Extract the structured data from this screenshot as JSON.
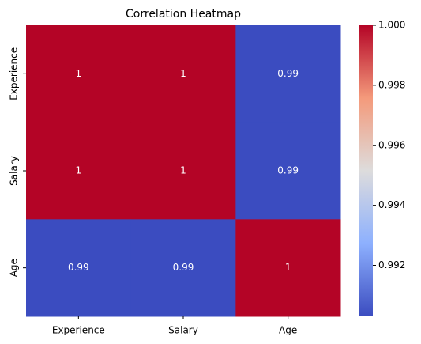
{
  "chart_data": {
    "type": "heatmap",
    "title": "Correlation Heatmap",
    "x_categories": [
      "Experience",
      "Salary",
      "Age"
    ],
    "y_categories": [
      "Experience",
      "Salary",
      "Age"
    ],
    "values": [
      [
        1,
        1,
        0.99
      ],
      [
        1,
        1,
        0.99
      ],
      [
        0.99,
        0.99,
        1
      ]
    ],
    "colormap": "coolwarm",
    "clim": [
      0.9903,
      1
    ],
    "cticks": [
      0.992,
      0.994,
      0.996,
      0.998,
      {
        "value": 1,
        "label": "1.000"
      }
    ]
  }
}
